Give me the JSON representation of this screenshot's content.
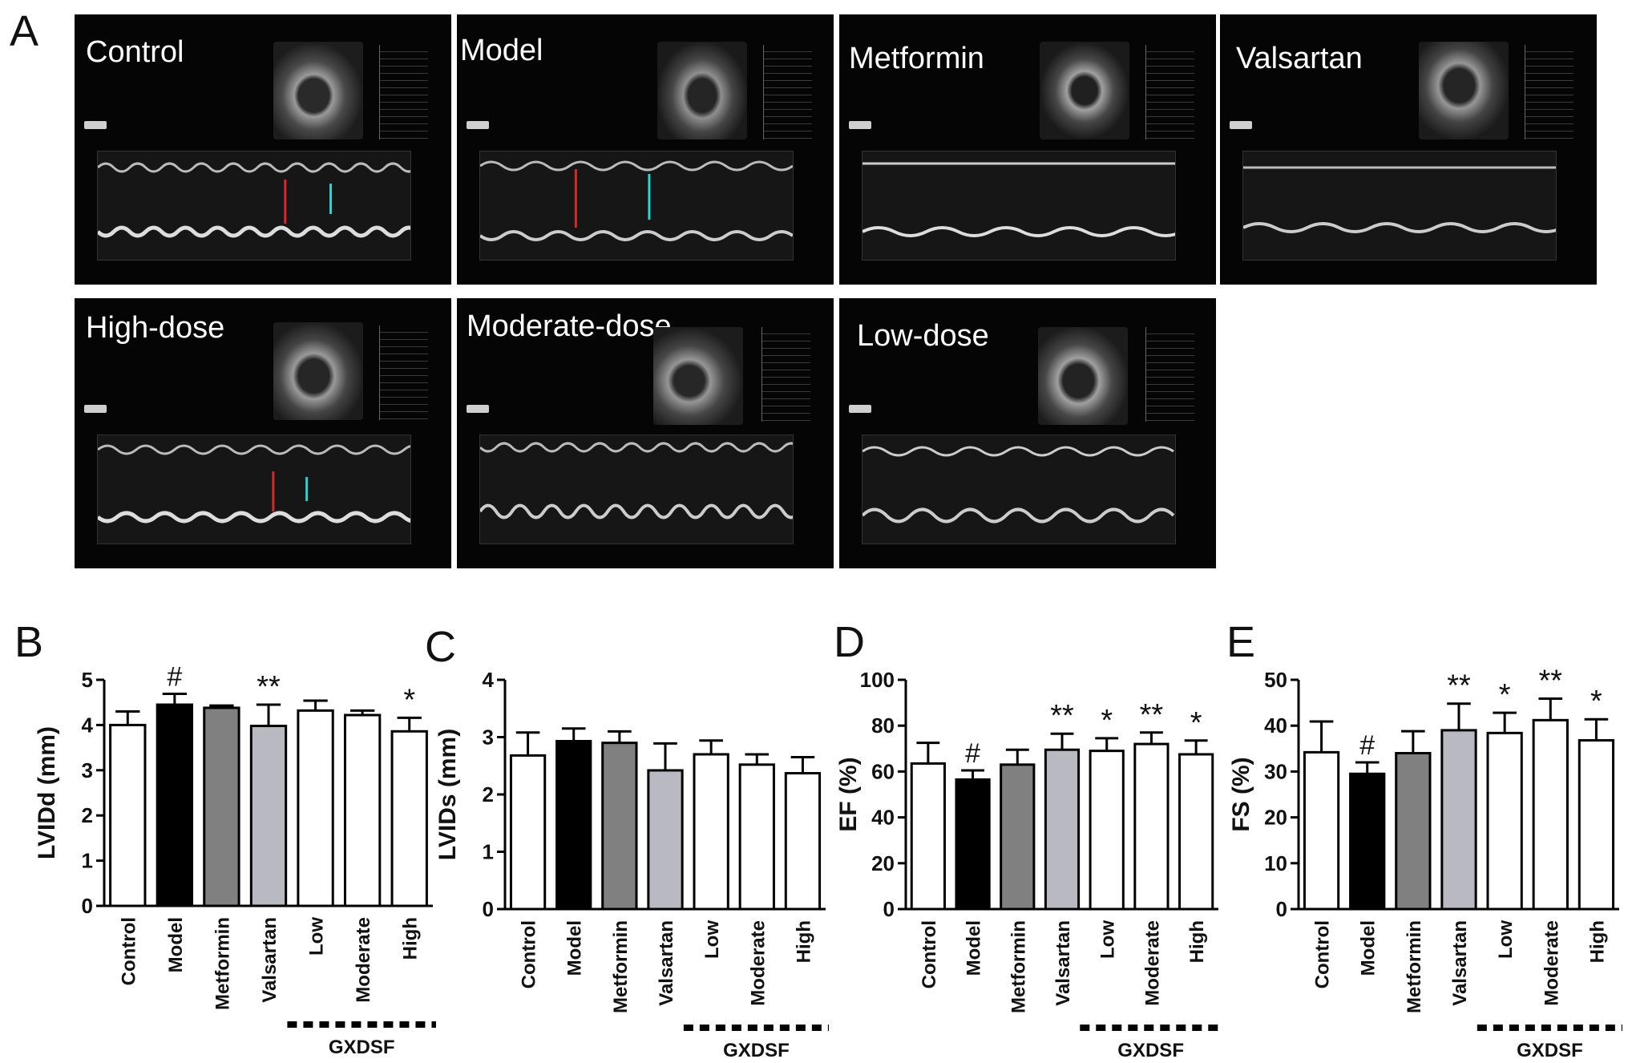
{
  "panel_letters": [
    "A",
    "B",
    "C",
    "D",
    "E"
  ],
  "echo_panels": [
    {
      "name": "Control"
    },
    {
      "name": "Model"
    },
    {
      "name": "Metformin"
    },
    {
      "name": "Valsartan"
    },
    {
      "name": "High-dose"
    },
    {
      "name": "Moderate-dose"
    },
    {
      "name": "Low-dose"
    }
  ],
  "chart_data": [
    {
      "type": "bar",
      "panel": "B",
      "categories": [
        "Control",
        "Model",
        "Metformin",
        "Valsartan",
        "Low",
        "Moderate",
        "High"
      ],
      "values": [
        4.0,
        4.45,
        4.38,
        3.98,
        4.32,
        4.22,
        3.86
      ],
      "errors": [
        0.3,
        0.24,
        0.05,
        0.47,
        0.22,
        0.1,
        0.3
      ],
      "markers": [
        "",
        "#",
        "",
        "**",
        "",
        "",
        "*"
      ],
      "fills": [
        "#ffffff",
        "#000000",
        "#808080",
        "#b9b9c2",
        "#ffffff",
        "#ffffff",
        "#ffffff"
      ],
      "ylabel": "LVIDd (mm)",
      "ylim": [
        0,
        5
      ],
      "yticks": [
        "0",
        "1",
        "2",
        "3",
        "4",
        "5"
      ],
      "group_label": "GXDSF"
    },
    {
      "type": "bar",
      "panel": "C",
      "categories": [
        "Control",
        "Model",
        "Metformin",
        "Valsartan",
        "Low",
        "Moderate",
        "High"
      ],
      "values": [
        2.68,
        2.93,
        2.9,
        2.42,
        2.7,
        2.52,
        2.37
      ],
      "errors": [
        0.4,
        0.22,
        0.2,
        0.47,
        0.24,
        0.18,
        0.28
      ],
      "markers": [
        "",
        "",
        "",
        "",
        "",
        "",
        ""
      ],
      "fills": [
        "#ffffff",
        "#000000",
        "#808080",
        "#b9b9c2",
        "#ffffff",
        "#ffffff",
        "#ffffff"
      ],
      "ylabel": "LVIDs (mm)",
      "ylim": [
        0,
        4
      ],
      "yticks": [
        "0",
        "1",
        "2",
        "3",
        "4"
      ],
      "group_label": "GXDSF"
    },
    {
      "type": "bar",
      "panel": "D",
      "categories": [
        "Control",
        "Model",
        "Metformin",
        "Valsartan",
        "Low",
        "Moderate",
        "High"
      ],
      "values": [
        63.5,
        56.5,
        63,
        69.5,
        69,
        72,
        67.5
      ],
      "errors": [
        9,
        4,
        6.5,
        7,
        5.5,
        5,
        6
      ],
      "markers": [
        "",
        "#",
        "",
        "**",
        "*",
        "**",
        "*"
      ],
      "fills": [
        "#ffffff",
        "#000000",
        "#808080",
        "#b9b9c2",
        "#ffffff",
        "#ffffff",
        "#ffffff"
      ],
      "ylabel": "EF (%)",
      "ylim": [
        0,
        100
      ],
      "yticks": [
        "0",
        "20",
        "40",
        "60",
        "80",
        "100"
      ],
      "group_label": "GXDSF"
    },
    {
      "type": "bar",
      "panel": "E",
      "categories": [
        "Control",
        "Model",
        "Metformin",
        "Valsartan",
        "Low",
        "Moderate",
        "High"
      ],
      "values": [
        34.2,
        29.5,
        34,
        39,
        38.4,
        41.2,
        36.8
      ],
      "errors": [
        6.7,
        2.5,
        4.8,
        5.8,
        4.4,
        4.7,
        4.6
      ],
      "markers": [
        "",
        "#",
        "",
        "**",
        "*",
        "**",
        "*"
      ],
      "fills": [
        "#ffffff",
        "#000000",
        "#808080",
        "#b9b9c2",
        "#ffffff",
        "#ffffff",
        "#ffffff"
      ],
      "ylabel": "FS (%)",
      "ylim": [
        0,
        50
      ],
      "yticks": [
        "0",
        "10",
        "20",
        "30",
        "40",
        "50"
      ],
      "group_label": "GXDSF"
    }
  ]
}
